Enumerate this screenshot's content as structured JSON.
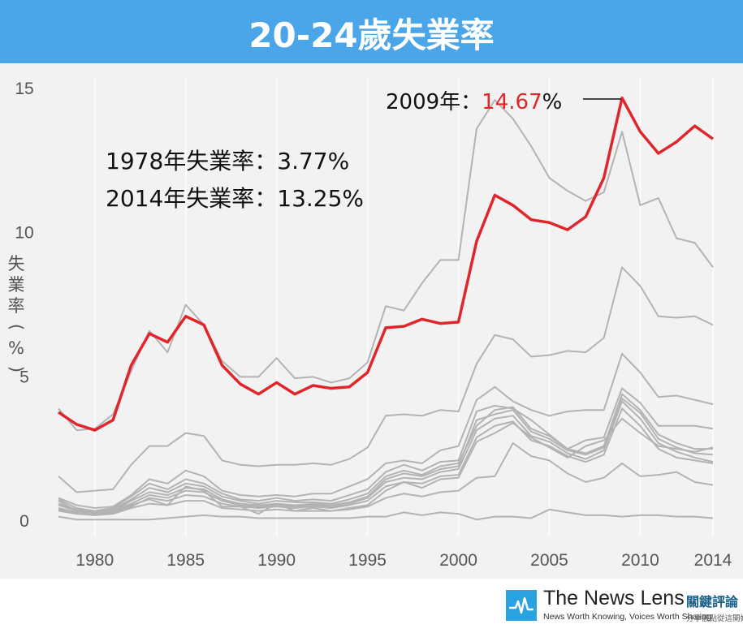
{
  "header": {
    "title": "20-24歲失業率"
  },
  "footer": {
    "brand": "The News Lens",
    "brand_cn": "關鍵評論",
    "tagline": "News Worth Knowing, Voices Worth Sharing",
    "tagline_cn": "分享觀點從這開始"
  },
  "annotations": {
    "peak_prefix": "2009年：",
    "peak_value": "14.67",
    "peak_suffix": "%",
    "line1": "1978年失業率：3.77%",
    "line2": "2014年失業率：13.25%"
  },
  "chart_data": {
    "type": "line",
    "title": "20-24歲失業率",
    "ylabel": "失業率（%）",
    "xlabel": "",
    "xlim": [
      1978,
      2014
    ],
    "ylim": [
      0,
      15
    ],
    "x_ticks": [
      1980,
      1985,
      1990,
      1995,
      2000,
      2005,
      2010,
      2014
    ],
    "y_ticks": [
      0,
      5,
      10,
      15
    ],
    "grid": "vertical",
    "highlight_color": "#e0262b",
    "context_color": "#b3b3b3",
    "highlight": {
      "x": [
        1978,
        1979,
        1980,
        1981,
        1982,
        1983,
        1984,
        1985,
        1986,
        1987,
        1988,
        1989,
        1990,
        1991,
        1992,
        1993,
        1994,
        1995,
        1996,
        1997,
        1998,
        1999,
        2000,
        2001,
        2002,
        2003,
        2004,
        2005,
        2006,
        2007,
        2008,
        2009,
        2010,
        2011,
        2012,
        2013,
        2014
      ],
      "values": [
        3.77,
        3.35,
        3.15,
        3.5,
        5.4,
        6.5,
        6.2,
        7.1,
        6.8,
        5.4,
        4.75,
        4.4,
        4.8,
        4.4,
        4.7,
        4.6,
        4.65,
        5.15,
        6.7,
        6.75,
        7.0,
        6.85,
        6.9,
        9.7,
        11.3,
        10.95,
        10.45,
        10.35,
        10.1,
        10.55,
        11.9,
        14.67,
        13.5,
        12.75,
        13.15,
        13.7,
        13.25
      ]
    },
    "series": [
      {
        "values": [
          3.9,
          3.15,
          3.2,
          3.7,
          5.2,
          6.6,
          5.85,
          7.5,
          6.8,
          5.55,
          5.0,
          5.0,
          5.65,
          4.95,
          5.0,
          4.8,
          4.95,
          5.5,
          7.45,
          7.3,
          8.25,
          9.05,
          9.05,
          13.6,
          14.6,
          13.95,
          13.0,
          11.9,
          11.45,
          11.1,
          11.4,
          13.5,
          10.95,
          11.2,
          9.8,
          9.65,
          8.8
        ]
      },
      {
        "values": [
          1.55,
          1.0,
          1.05,
          1.1,
          1.95,
          2.6,
          2.6,
          3.05,
          2.95,
          2.1,
          1.95,
          1.9,
          1.95,
          1.95,
          2.0,
          1.95,
          2.15,
          2.55,
          3.65,
          3.7,
          3.65,
          3.85,
          3.8,
          5.45,
          6.45,
          6.3,
          5.7,
          5.75,
          5.9,
          5.85,
          6.35,
          8.8,
          8.15,
          7.1,
          7.05,
          7.1,
          6.8
        ]
      },
      {
        "values": [
          0.8,
          0.55,
          0.45,
          0.5,
          0.9,
          1.45,
          1.3,
          1.75,
          1.55,
          1.05,
          0.9,
          0.85,
          0.9,
          0.85,
          0.95,
          0.95,
          1.2,
          1.45,
          2.0,
          2.1,
          2.0,
          2.45,
          2.6,
          4.2,
          4.65,
          4.15,
          3.85,
          3.65,
          3.8,
          3.85,
          3.85,
          5.8,
          5.15,
          4.3,
          4.35,
          4.2,
          4.05
        ]
      },
      {
        "values": [
          0.75,
          0.45,
          0.35,
          0.45,
          0.85,
          1.3,
          1.1,
          1.45,
          1.3,
          0.95,
          0.75,
          0.7,
          0.8,
          0.7,
          0.75,
          0.7,
          0.9,
          1.1,
          1.7,
          1.95,
          1.75,
          2.05,
          2.1,
          3.8,
          4.0,
          3.9,
          3.5,
          3.0,
          2.5,
          2.8,
          2.9,
          4.6,
          4.1,
          3.3,
          3.3,
          3.3,
          3.2
        ]
      },
      {
        "values": [
          0.6,
          0.4,
          0.35,
          0.4,
          0.75,
          1.15,
          1.0,
          1.3,
          1.2,
          0.85,
          0.7,
          0.6,
          0.7,
          0.65,
          0.65,
          0.6,
          0.75,
          0.95,
          1.55,
          1.75,
          1.6,
          1.9,
          2.0,
          3.3,
          3.85,
          3.95,
          3.2,
          2.95,
          2.5,
          2.35,
          2.6,
          4.4,
          3.85,
          3.0,
          2.7,
          2.5,
          2.5
        ]
      },
      {
        "values": [
          0.55,
          0.35,
          0.3,
          0.35,
          0.7,
          1.0,
          0.9,
          1.15,
          1.1,
          0.75,
          0.6,
          0.55,
          0.6,
          0.55,
          0.6,
          0.55,
          0.65,
          0.85,
          1.45,
          1.65,
          1.55,
          1.8,
          1.9,
          3.5,
          3.7,
          3.85,
          3.1,
          2.85,
          2.45,
          2.3,
          2.55,
          4.25,
          3.75,
          2.85,
          2.55,
          2.35,
          2.3
        ]
      },
      {
        "values": [
          0.45,
          0.3,
          0.3,
          0.35,
          0.6,
          0.9,
          0.8,
          1.05,
          1.0,
          0.7,
          0.55,
          0.5,
          0.55,
          0.5,
          0.55,
          0.5,
          0.6,
          0.8,
          1.35,
          1.5,
          1.45,
          1.7,
          1.8,
          3.15,
          3.55,
          3.65,
          2.95,
          2.75,
          2.35,
          2.15,
          2.45,
          4.15,
          3.55,
          2.7,
          2.4,
          2.2,
          2.05
        ]
      },
      {
        "values": [
          0.4,
          0.25,
          0.25,
          0.3,
          0.5,
          0.8,
          0.7,
          0.9,
          0.85,
          0.6,
          0.5,
          0.45,
          0.5,
          0.45,
          0.5,
          0.45,
          0.55,
          0.7,
          1.2,
          1.35,
          1.3,
          1.55,
          1.6,
          2.9,
          3.3,
          3.45,
          2.8,
          2.6,
          2.25,
          2.05,
          2.3,
          3.9,
          3.3,
          2.5,
          2.2,
          2.1,
          2.0
        ]
      },
      {
        "values": [
          0.7,
          0.35,
          0.35,
          0.3,
          0.55,
          0.75,
          0.55,
          1.2,
          1.05,
          0.5,
          0.5,
          0.25,
          0.6,
          0.35,
          0.45,
          0.35,
          0.45,
          0.55,
          1.05,
          1.35,
          1.15,
          1.45,
          1.5,
          2.75,
          3.05,
          3.4,
          2.9,
          2.55,
          2.2,
          2.6,
          2.8,
          3.55,
          3.05,
          2.6,
          2.5,
          2.4,
          2.55
        ]
      },
      {
        "values": [
          0.35,
          0.25,
          0.2,
          0.25,
          0.45,
          0.6,
          0.55,
          0.7,
          0.7,
          0.45,
          0.4,
          0.35,
          0.4,
          0.35,
          0.35,
          0.35,
          0.4,
          0.5,
          0.8,
          0.95,
          0.85,
          1.0,
          1.05,
          1.5,
          1.55,
          2.7,
          2.25,
          2.1,
          1.65,
          1.35,
          1.5,
          2.0,
          1.55,
          1.6,
          1.7,
          1.35,
          1.25
        ]
      },
      {
        "values": [
          0.15,
          0.05,
          0.05,
          0.05,
          0.05,
          0.05,
          0.1,
          0.15,
          0.2,
          0.15,
          0.15,
          0.1,
          0.1,
          0.1,
          0.1,
          0.1,
          0.1,
          0.15,
          0.15,
          0.3,
          0.2,
          0.3,
          0.25,
          0.05,
          0.15,
          0.15,
          0.1,
          0.4,
          0.3,
          0.2,
          0.2,
          0.15,
          0.2,
          0.2,
          0.15,
          0.15,
          0.1
        ]
      }
    ]
  }
}
